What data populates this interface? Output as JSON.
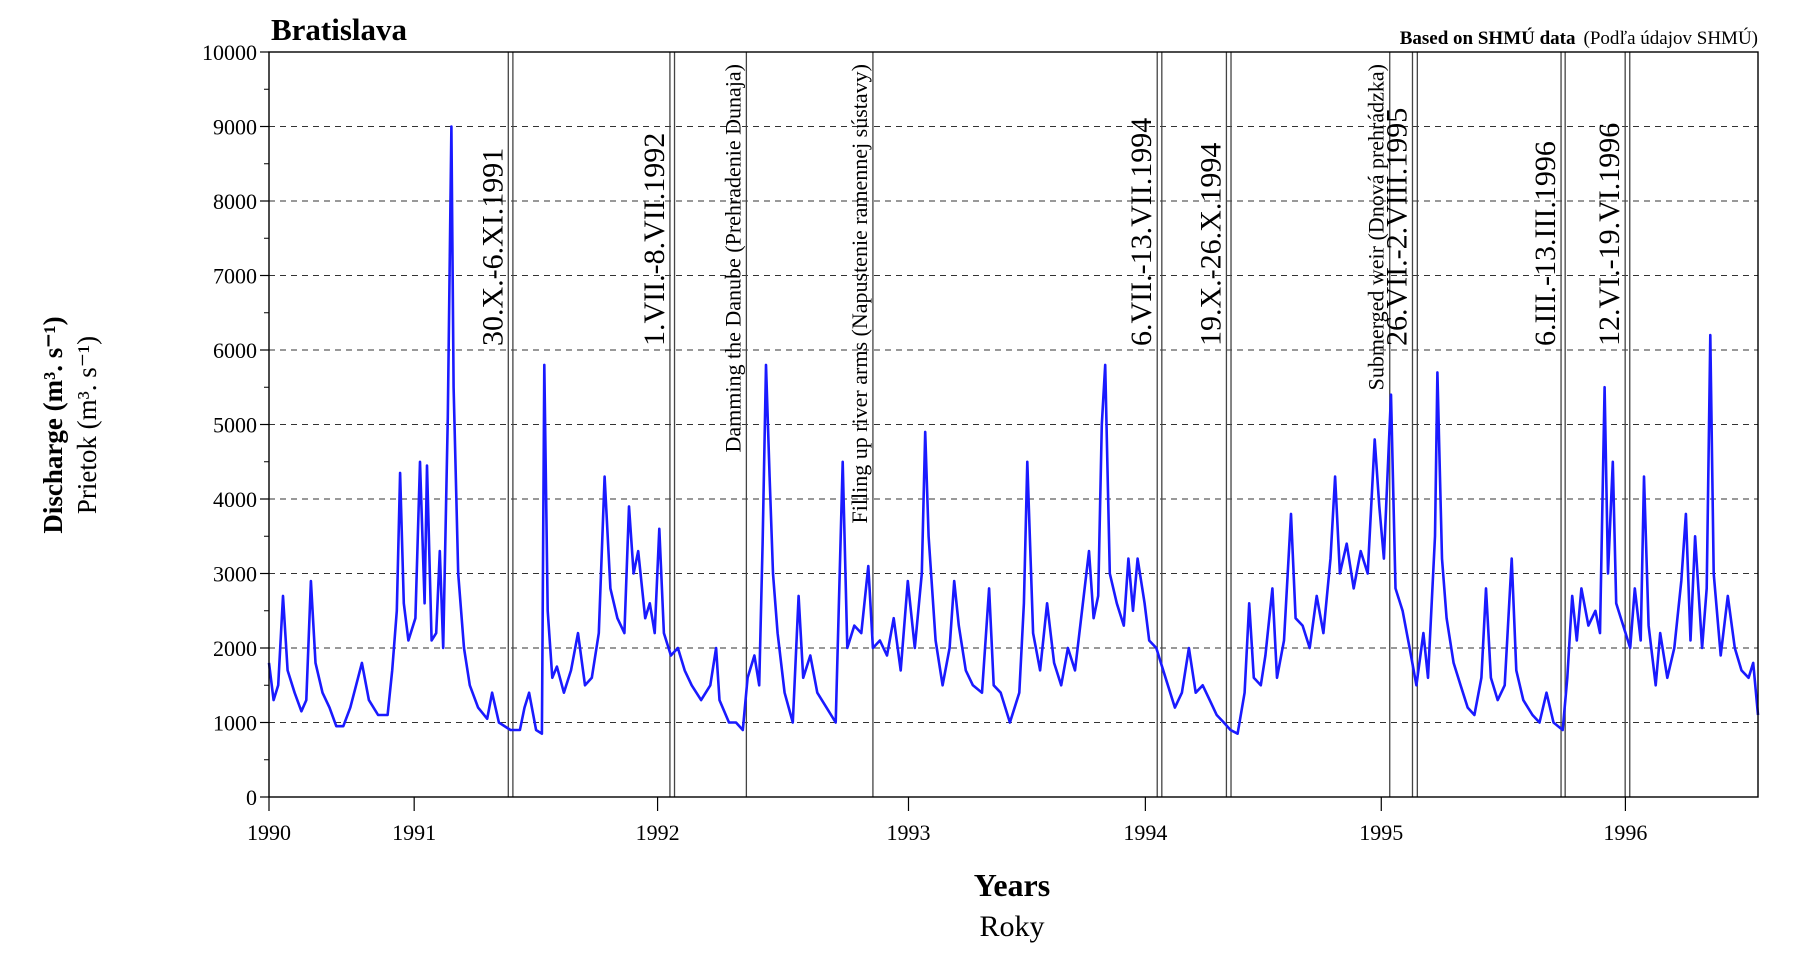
{
  "chart_data": {
    "type": "line",
    "title": "Bratislava",
    "source": "Based on SHMÚ data",
    "source_sk": "(Podľa údajov SHMÚ)",
    "ylabel": "Discharge (m³. s⁻¹)",
    "ylabel_sk": "Prietok (m³. s⁻¹)",
    "xlabel": "Years",
    "xlabel_sk": "Roky",
    "color": "#1a1aff",
    "grid": true,
    "xlim": [
      1990.84,
      1996.994
    ],
    "ylim": [
      0,
      10000
    ],
    "yticks": [
      0,
      1000,
      2000,
      3000,
      4000,
      5000,
      6000,
      7000,
      8000,
      9000,
      10000
    ],
    "xticks": [
      {
        "value": 1990.84,
        "label": "1990"
      },
      {
        "value": 1991.44,
        "label": "1991"
      },
      {
        "value": 1992.446,
        "label": "1992"
      },
      {
        "value": 1993.483,
        "label": "1993"
      },
      {
        "value": 1994.462,
        "label": "1994"
      },
      {
        "value": 1995.437,
        "label": "1995"
      },
      {
        "value": 1996.446,
        "label": "1996"
      }
    ],
    "events": [
      {
        "label": "30.X.-6.XI.1991",
        "x": [
          1991.829,
          1991.848
        ]
      },
      {
        "label": "1.VII.-8.VII.1992",
        "x": [
          1992.497,
          1992.516
        ]
      },
      {
        "label": "Damming the Danube (Prehradenie Dunaja)",
        "x": [
          1992.813
        ]
      },
      {
        "label": "Filling up river arms (Napustenie ramennej sústavy)",
        "x": [
          1993.336
        ]
      },
      {
        "label": "6.VII.-13.VII.1994",
        "x": [
          1994.511,
          1994.53
        ]
      },
      {
        "label": "19.X.-26.X.1994",
        "x": [
          1994.797,
          1994.816
        ]
      },
      {
        "label": "Submerged weir (Dnová prehrádzka)",
        "x": [
          1995.472
        ]
      },
      {
        "label": "26.VII.-2.VIII.1995",
        "x": [
          1995.566,
          1995.586
        ]
      },
      {
        "label": "6.III.-13.III.1996",
        "x": [
          1996.18,
          1996.197
        ]
      },
      {
        "label": "12.VI.-19.VI.1996",
        "x": [
          1996.445,
          1996.464
        ]
      }
    ],
    "x": [
      1990.84,
      1990.859,
      1990.878,
      1990.898,
      1990.917,
      1990.946,
      1990.974,
      1990.994,
      1991.013,
      1991.032,
      1991.061,
      1991.09,
      1991.118,
      1991.147,
      1991.176,
      1991.2,
      1991.224,
      1991.253,
      1991.291,
      1991.33,
      1991.349,
      1991.368,
      1991.382,
      1991.397,
      1991.416,
      1991.445,
      1991.464,
      1991.483,
      1991.493,
      1991.512,
      1991.531,
      1991.546,
      1991.56,
      1991.579,
      1991.594,
      1991.603,
      1991.622,
      1991.646,
      1991.67,
      1991.704,
      1991.742,
      1991.762,
      1991.79,
      1991.838,
      1991.877,
      1991.896,
      1991.915,
      1991.944,
      1991.968,
      1991.978,
      1991.992,
      1992.011,
      1992.03,
      1992.059,
      1992.088,
      1992.117,
      1992.146,
      1992.174,
      1992.203,
      1992.227,
      1992.251,
      1992.28,
      1992.309,
      1992.328,
      1992.347,
      1992.366,
      1992.395,
      1992.414,
      1992.434,
      1992.453,
      1992.472,
      1992.501,
      1992.53,
      1992.558,
      1992.587,
      1992.626,
      1992.664,
      1992.688,
      1992.702,
      1992.741,
      1992.77,
      1992.798,
      1992.818,
      1992.846,
      1992.866,
      1992.88,
      1992.894,
      1992.909,
      1992.923,
      1992.942,
      1992.971,
      1993.005,
      1993.029,
      1993.048,
      1993.077,
      1993.106,
      1993.144,
      1993.182,
      1993.211,
      1993.23,
      1993.259,
      1993.288,
      1993.317,
      1993.336,
      1993.365,
      1993.394,
      1993.422,
      1993.451,
      1993.48,
      1993.509,
      1993.538,
      1993.552,
      1993.566,
      1993.595,
      1993.624,
      1993.653,
      1993.672,
      1993.691,
      1993.72,
      1993.749,
      1993.787,
      1993.816,
      1993.835,
      1993.864,
      1993.902,
      1993.941,
      1993.96,
      1993.974,
      1993.998,
      1994.027,
      1994.056,
      1994.085,
      1994.114,
      1994.142,
      1994.171,
      1994.2,
      1994.229,
      1994.248,
      1994.267,
      1994.282,
      1994.296,
      1994.315,
      1994.344,
      1994.373,
      1994.392,
      1994.411,
      1994.43,
      1994.459,
      1994.478,
      1994.507,
      1994.526,
      1994.555,
      1994.584,
      1994.613,
      1994.642,
      1994.67,
      1994.699,
      1994.728,
      1994.757,
      1994.786,
      1994.814,
      1994.843,
      1994.872,
      1994.891,
      1994.91,
      1994.939,
      1994.958,
      1994.987,
      1995.006,
      1995.035,
      1995.064,
      1995.083,
      1995.112,
      1995.141,
      1995.17,
      1995.198,
      1995.227,
      1995.246,
      1995.266,
      1995.294,
      1995.323,
      1995.352,
      1995.381,
      1995.41,
      1995.429,
      1995.448,
      1995.477,
      1995.496,
      1995.525,
      1995.554,
      1995.582,
      1995.611,
      1995.63,
      1995.659,
      1995.669,
      1995.688,
      1995.707,
      1995.736,
      1995.765,
      1995.794,
      1995.822,
      1995.851,
      1995.87,
      1995.89,
      1995.918,
      1995.947,
      1995.976,
      1995.995,
      1996.024,
      1996.062,
      1996.091,
      1996.12,
      1996.149,
      1996.187,
      1996.206,
      1996.226,
      1996.245,
      1996.264,
      1996.293,
      1996.322,
      1996.341,
      1996.36,
      1996.374,
      1996.394,
      1996.408,
      1996.437,
      1996.466,
      1996.485,
      1996.509,
      1996.523,
      1996.542,
      1996.571,
      1996.59,
      1996.619,
      1996.648,
      1996.677,
      1996.696,
      1996.715,
      1996.734,
      1996.763,
      1996.782,
      1996.797,
      1996.811,
      1996.84,
      1996.869,
      1996.898,
      1996.926,
      1996.955,
      1996.974,
      1996.994
    ],
    "values": [
      1800,
      1300,
      1500,
      2700,
      1700,
      1400,
      1150,
      1300,
      2900,
      1800,
      1400,
      1200,
      950,
      950,
      1200,
      1500,
      1800,
      1300,
      1100,
      1100,
      1700,
      2500,
      4350,
      2600,
      2100,
      2400,
      4500,
      2600,
      4450,
      2100,
      2200,
      3300,
      2000,
      5100,
      9000,
      5500,
      3000,
      2000,
      1500,
      1200,
      1050,
      1400,
      1000,
      900,
      900,
      1200,
      1400,
      900,
      850,
      5800,
      2500,
      1600,
      1750,
      1400,
      1700,
      2200,
      1500,
      1600,
      2200,
      4300,
      2800,
      2400,
      2200,
      3900,
      3000,
      3300,
      2400,
      2600,
      2200,
      3600,
      2200,
      1900,
      2000,
      1700,
      1500,
      1300,
      1500,
      2000,
      1300,
      1000,
      1000,
      900,
      1600,
      1900,
      1500,
      3400,
      5800,
      4300,
      3000,
      2200,
      1400,
      1000,
      2700,
      1600,
      1900,
      1400,
      1200,
      1000,
      4500,
      2000,
      2300,
      2200,
      3100,
      2000,
      2100,
      1900,
      2400,
      1700,
      2900,
      2000,
      3000,
      4900,
      3500,
      2100,
      1500,
      2000,
      2900,
      2300,
      1700,
      1500,
      1400,
      2800,
      1500,
      1400,
      1000,
      1400,
      2600,
      4500,
      2200,
      1700,
      2600,
      1800,
      1500,
      2000,
      1700,
      2500,
      3300,
      2400,
      2700,
      5000,
      5800,
      3000,
      2600,
      2300,
      3200,
      2500,
      3200,
      2600,
      2100,
      2000,
      1800,
      1500,
      1200,
      1400,
      2000,
      1400,
      1500,
      1300,
      1100,
      1000,
      900,
      850,
      1400,
      2600,
      1600,
      1500,
      1900,
      2800,
      1600,
      2100,
      3800,
      2400,
      2300,
      2000,
      2700,
      2200,
      3200,
      4300,
      3000,
      3400,
      2800,
      3300,
      3000,
      4800,
      3900,
      3200,
      5400,
      2800,
      2500,
      2000,
      1500,
      2200,
      1600,
      3500,
      5700,
      3200,
      2400,
      1800,
      1500,
      1200,
      1100,
      1600,
      2800,
      1600,
      1300,
      1500,
      3200,
      1700,
      1300,
      1100,
      1000,
      1400,
      1000,
      900,
      1600,
      2700,
      2100,
      2800,
      2300,
      2500,
      2200,
      5500,
      3000,
      4500,
      2600,
      2300,
      2000,
      2800,
      2100,
      4300,
      2300,
      1500,
      2200,
      1600,
      2000,
      2900,
      3800,
      2100,
      3500,
      2000,
      2800,
      6200,
      3000,
      1900,
      2700,
      2000,
      1700,
      1600,
      1800,
      1100
    ]
  }
}
